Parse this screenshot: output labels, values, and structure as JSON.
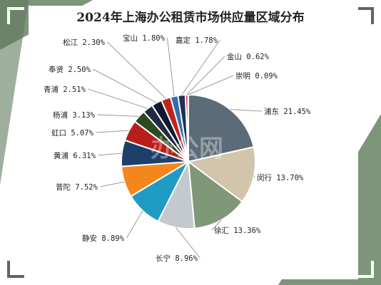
{
  "chart_data": {
    "type": "pie",
    "title": "2024年上海办公租赁市场供应量区域分布",
    "watermark": "办公网",
    "slices": [
      {
        "name": "浦东",
        "value": 21.45,
        "display": "21.45%",
        "color": "#5b6b77"
      },
      {
        "name": "闵行",
        "value": 13.7,
        "display": "13.70%",
        "color": "#d3c4ac"
      },
      {
        "name": "徐汇",
        "value": 13.36,
        "display": "13.36%",
        "color": "#7f9878"
      },
      {
        "name": "长宁",
        "value": 8.96,
        "display": "8.96%",
        "color": "#c3c9cc"
      },
      {
        "name": "静安",
        "value": 8.89,
        "display": "8.89%",
        "color": "#1f9bc4"
      },
      {
        "name": "普陀",
        "value": 7.52,
        "display": "7.52%",
        "color": "#f3871d"
      },
      {
        "name": "黄浦",
        "value": 6.31,
        "display": "6.31%",
        "color": "#1e3e6c"
      },
      {
        "name": "虹口",
        "value": 5.07,
        "display": "5.07%",
        "color": "#b81e1c"
      },
      {
        "name": "杨浦",
        "value": 3.13,
        "display": "3.13%",
        "color": "#2c4a1d"
      },
      {
        "name": "青浦",
        "value": 2.51,
        "display": "2.51%",
        "color": "#1f2a44"
      },
      {
        "name": "奉贤",
        "value": 2.5,
        "display": "2.50%",
        "color": "#0f1a2e"
      },
      {
        "name": "松江",
        "value": 2.3,
        "display": "2.30%",
        "color": "#c0241f"
      },
      {
        "name": "宝山",
        "value": 1.8,
        "display": "1.80%",
        "color": "#2e6fb0"
      },
      {
        "name": "嘉定",
        "value": 1.78,
        "display": "1.78%",
        "color": "#1f2f5a"
      },
      {
        "name": "金山",
        "value": 0.62,
        "display": "0.62%",
        "color": "#d7282f"
      },
      {
        "name": "崇明",
        "value": 0.09,
        "display": "0.09%",
        "color": "#1b3d7a"
      }
    ]
  }
}
